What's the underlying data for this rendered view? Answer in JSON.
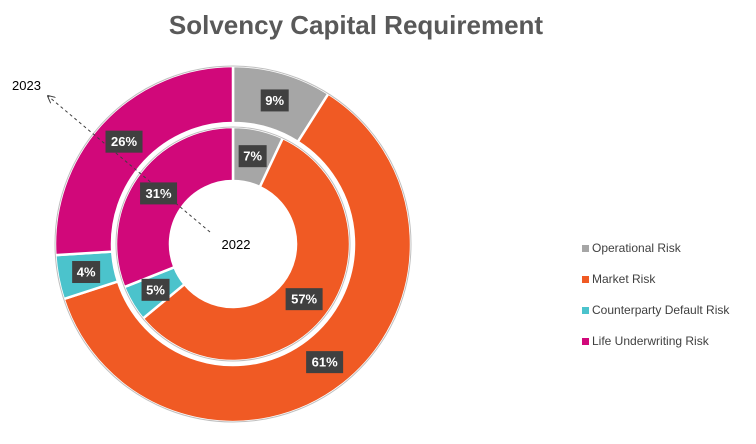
{
  "chart_data": {
    "type": "pie",
    "subtype": "nested-doughnut",
    "title": "Solvency Capital Requirement",
    "categories": [
      "Operational Risk",
      "Market Risk",
      "Counterparty Default Risk",
      "Life Underwriting Risk"
    ],
    "colors": [
      "#a6a6a6",
      "#f05a24",
      "#4bc3cc",
      "#d1087a"
    ],
    "series": [
      {
        "name": "2023",
        "ring": "outer",
        "values": [
          9,
          61,
          4,
          26
        ],
        "labels": [
          "9%",
          "61%",
          "4%",
          "26%"
        ]
      },
      {
        "name": "2022",
        "ring": "inner",
        "values": [
          7,
          57,
          5,
          31
        ],
        "labels": [
          "7%",
          "57%",
          "5%",
          "31%"
        ]
      }
    ],
    "legend": {
      "position": "right"
    }
  }
}
